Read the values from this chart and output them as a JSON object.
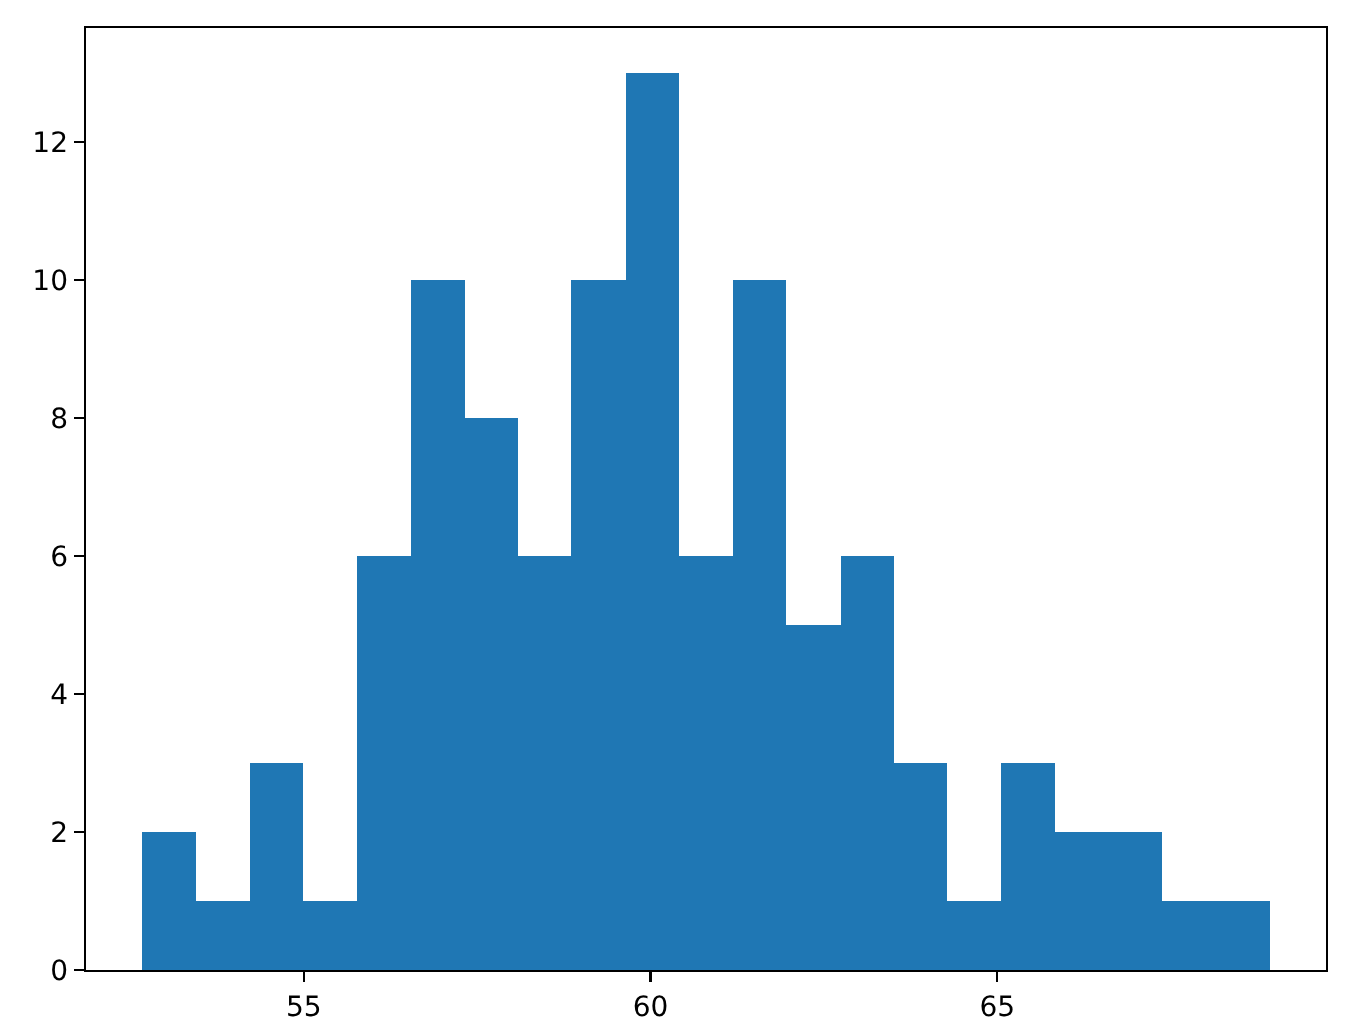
{
  "chart_data": {
    "type": "histogram",
    "bins": [
      52.67,
      53.44,
      54.22,
      54.99,
      55.77,
      56.54,
      57.32,
      58.09,
      58.86,
      59.64,
      60.41,
      61.19,
      61.96,
      62.74,
      63.51,
      64.28,
      65.06,
      65.83,
      66.61,
      67.38,
      68.16,
      68.93
    ],
    "values": [
      2,
      1,
      3,
      1,
      6,
      10,
      8,
      6,
      10,
      13,
      6,
      10,
      5,
      6,
      3,
      1,
      3,
      2,
      2,
      1,
      1
    ],
    "color": "#1f77b4",
    "xlim": [
      51.86,
      69.74
    ],
    "xticks": [
      55,
      60,
      65
    ],
    "ylim": [
      0,
      13.65
    ],
    "yticks": [
      0,
      2,
      4,
      6,
      8,
      10,
      12
    ]
  }
}
